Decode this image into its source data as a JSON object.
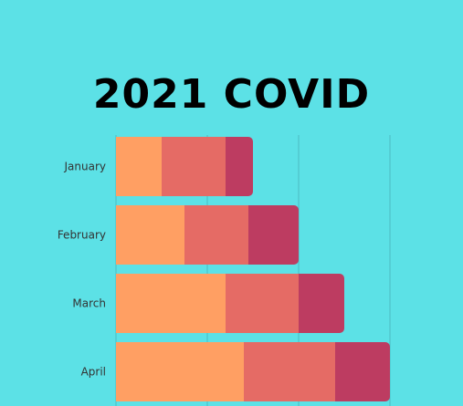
{
  "chart_data": {
    "type": "bar",
    "orientation": "horizontal",
    "stacked": true,
    "title": "2021 COVID",
    "categories": [
      "January",
      "February",
      "March",
      "April"
    ],
    "series": [
      {
        "values": [
          50,
          75,
          120,
          140
        ],
        "color": "#ff9f63"
      },
      {
        "values": [
          70,
          70,
          80,
          100
        ],
        "color": "#e56b65"
      },
      {
        "values": [
          30,
          55,
          50,
          60
        ],
        "color": "#bd3c61"
      }
    ],
    "xlim": [
      0,
      300
    ],
    "grid": true,
    "legend": "none",
    "xlabel": "",
    "ylabel": ""
  }
}
